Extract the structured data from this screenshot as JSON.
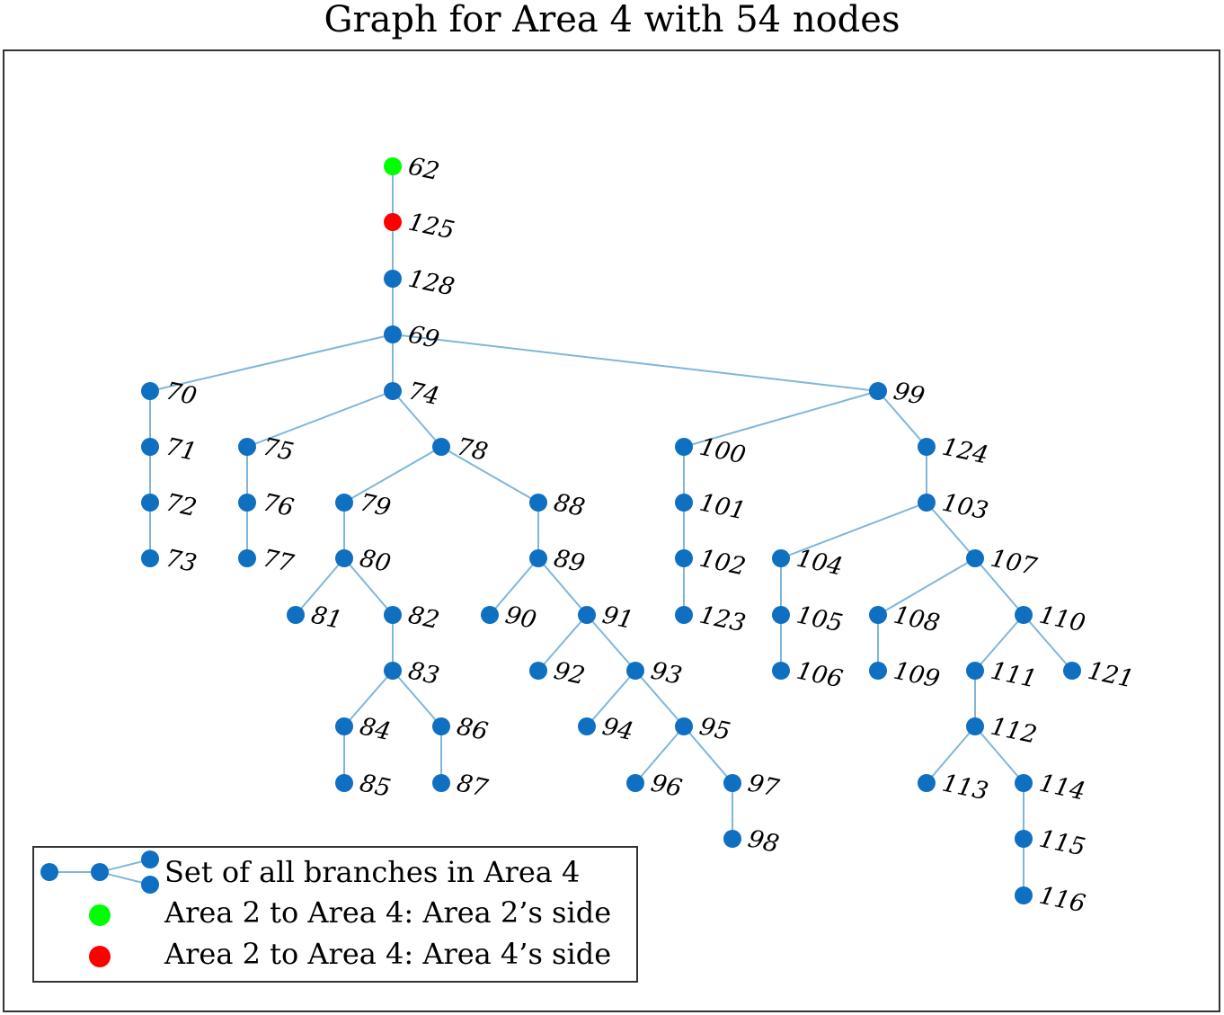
{
  "title": "Graph for Area 4 with 54 nodes",
  "colors": {
    "node": "#0f6fc0",
    "edge": "#7fb6da",
    "area2_side": "#00ff00",
    "area4_side": "#ff0000"
  },
  "graph": {
    "nodes": [
      {
        "id": "62",
        "type": "area2_side"
      },
      {
        "id": "125",
        "type": "area4_side"
      },
      {
        "id": "128"
      },
      {
        "id": "69"
      },
      {
        "id": "70"
      },
      {
        "id": "71"
      },
      {
        "id": "72"
      },
      {
        "id": "73"
      },
      {
        "id": "74"
      },
      {
        "id": "75"
      },
      {
        "id": "76"
      },
      {
        "id": "77"
      },
      {
        "id": "78"
      },
      {
        "id": "79"
      },
      {
        "id": "80"
      },
      {
        "id": "81"
      },
      {
        "id": "82"
      },
      {
        "id": "83"
      },
      {
        "id": "84"
      },
      {
        "id": "85"
      },
      {
        "id": "86"
      },
      {
        "id": "87"
      },
      {
        "id": "88"
      },
      {
        "id": "89"
      },
      {
        "id": "90"
      },
      {
        "id": "91"
      },
      {
        "id": "92"
      },
      {
        "id": "93"
      },
      {
        "id": "94"
      },
      {
        "id": "95"
      },
      {
        "id": "96"
      },
      {
        "id": "97"
      },
      {
        "id": "98"
      },
      {
        "id": "99"
      },
      {
        "id": "100"
      },
      {
        "id": "101"
      },
      {
        "id": "102"
      },
      {
        "id": "123"
      },
      {
        "id": "124"
      },
      {
        "id": "103"
      },
      {
        "id": "104"
      },
      {
        "id": "105"
      },
      {
        "id": "106"
      },
      {
        "id": "107"
      },
      {
        "id": "108"
      },
      {
        "id": "109"
      },
      {
        "id": "110"
      },
      {
        "id": "111"
      },
      {
        "id": "121"
      },
      {
        "id": "112"
      },
      {
        "id": "113"
      },
      {
        "id": "114"
      },
      {
        "id": "115"
      },
      {
        "id": "116"
      }
    ],
    "edges": [
      [
        "62",
        "125"
      ],
      [
        "125",
        "128"
      ],
      [
        "128",
        "69"
      ],
      [
        "69",
        "70"
      ],
      [
        "69",
        "74"
      ],
      [
        "69",
        "99"
      ],
      [
        "70",
        "71"
      ],
      [
        "71",
        "72"
      ],
      [
        "72",
        "73"
      ],
      [
        "74",
        "75"
      ],
      [
        "74",
        "78"
      ],
      [
        "75",
        "76"
      ],
      [
        "76",
        "77"
      ],
      [
        "78",
        "79"
      ],
      [
        "78",
        "88"
      ],
      [
        "79",
        "80"
      ],
      [
        "80",
        "81"
      ],
      [
        "80",
        "82"
      ],
      [
        "82",
        "83"
      ],
      [
        "83",
        "84"
      ],
      [
        "83",
        "86"
      ],
      [
        "84",
        "85"
      ],
      [
        "86",
        "87"
      ],
      [
        "88",
        "89"
      ],
      [
        "89",
        "90"
      ],
      [
        "89",
        "91"
      ],
      [
        "91",
        "92"
      ],
      [
        "91",
        "93"
      ],
      [
        "93",
        "94"
      ],
      [
        "93",
        "95"
      ],
      [
        "95",
        "96"
      ],
      [
        "95",
        "97"
      ],
      [
        "97",
        "98"
      ],
      [
        "99",
        "100"
      ],
      [
        "99",
        "124"
      ],
      [
        "100",
        "101"
      ],
      [
        "101",
        "102"
      ],
      [
        "102",
        "123"
      ],
      [
        "124",
        "103"
      ],
      [
        "103",
        "104"
      ],
      [
        "103",
        "107"
      ],
      [
        "104",
        "105"
      ],
      [
        "105",
        "106"
      ],
      [
        "107",
        "108"
      ],
      [
        "107",
        "110"
      ],
      [
        "108",
        "109"
      ],
      [
        "110",
        "111"
      ],
      [
        "110",
        "121"
      ],
      [
        "111",
        "112"
      ],
      [
        "112",
        "113"
      ],
      [
        "112",
        "114"
      ],
      [
        "114",
        "115"
      ],
      [
        "115",
        "116"
      ]
    ]
  },
  "legend": [
    {
      "label": "Set of all branches in Area 4",
      "marker": "branch-glyph"
    },
    {
      "label": "Area 2 to Area 4: Area 2’s side",
      "marker": "green-dot"
    },
    {
      "label": "Area 2 to Area 4: Area 4’s side",
      "marker": "red-dot"
    }
  ]
}
